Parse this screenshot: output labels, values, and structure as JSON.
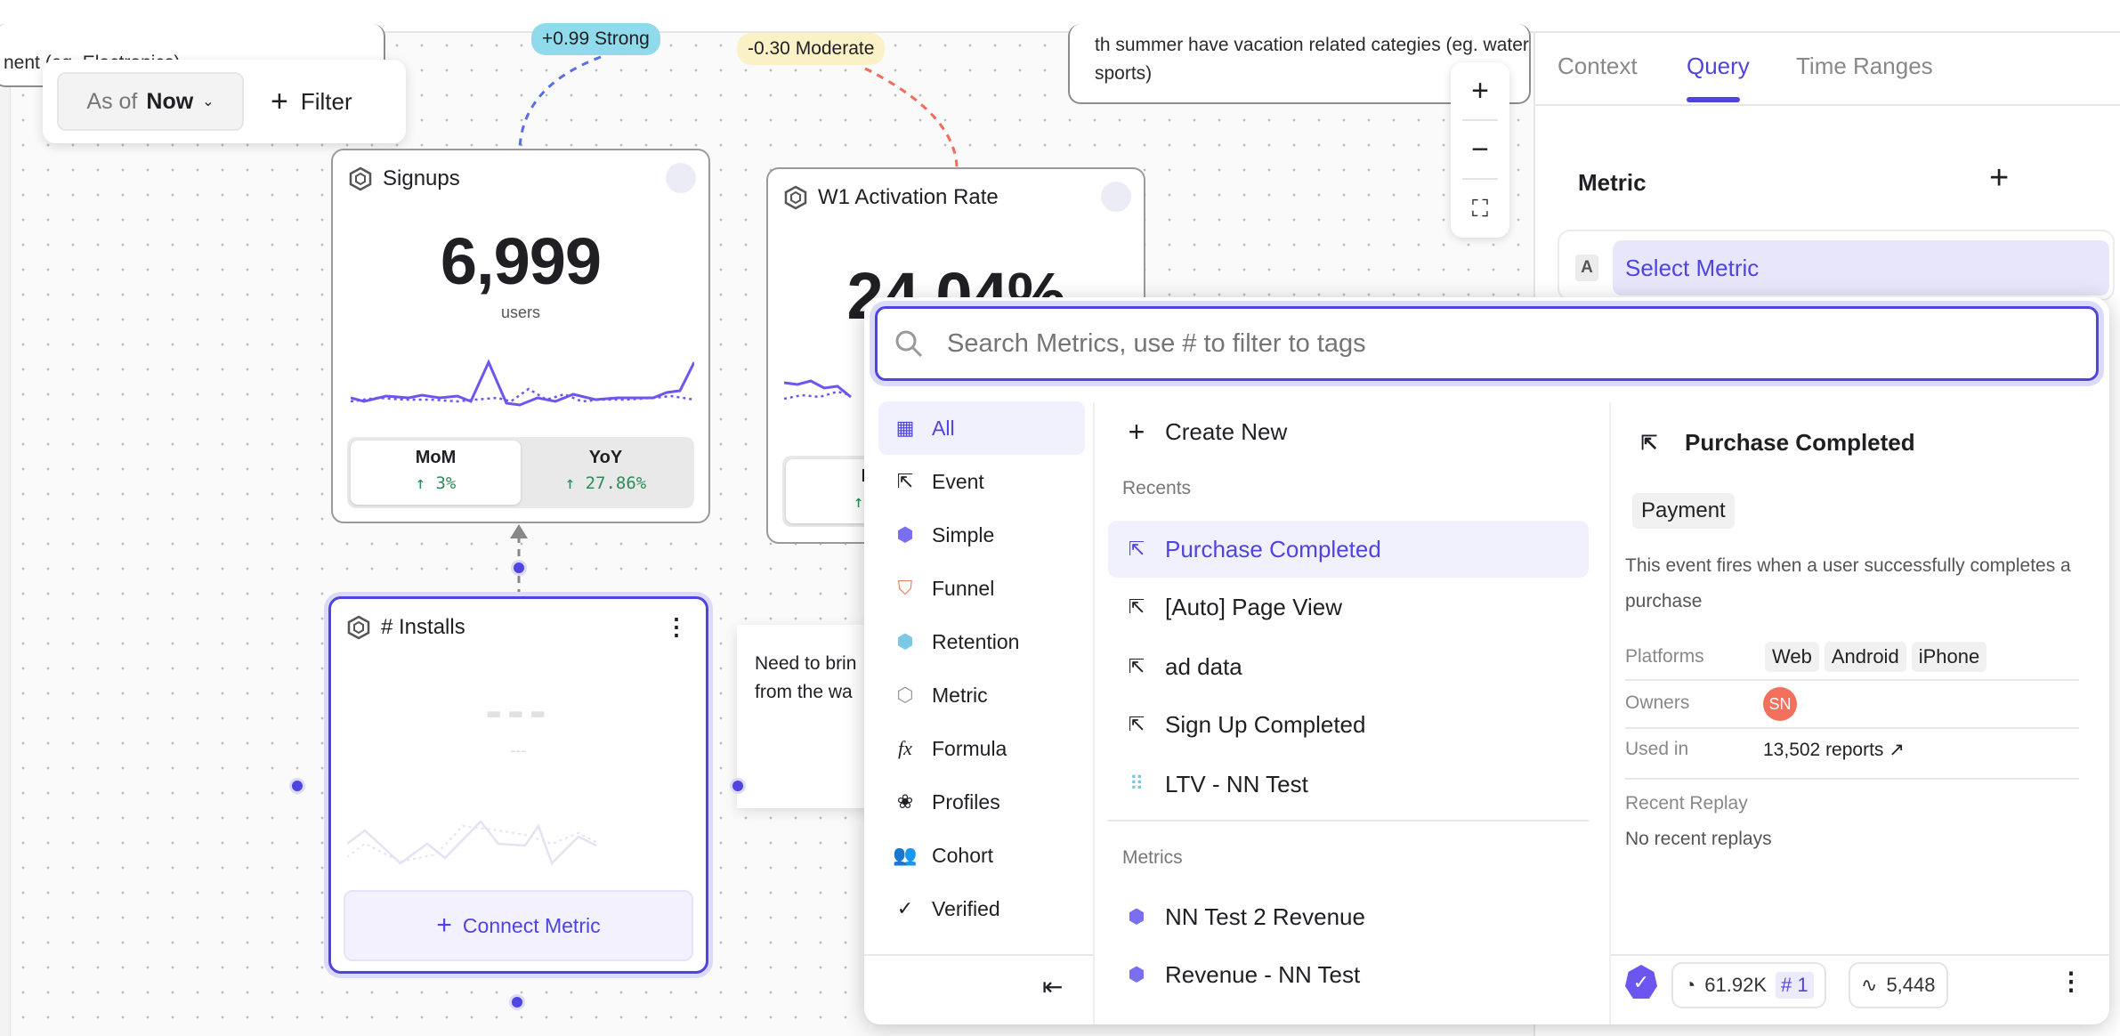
{
  "canvas": {
    "notes": {
      "top_left_text": "nent  (eg. Electronics)",
      "top_right_text": "th summer have vacation related categies (eg. water sports)",
      "right_text": "Need to brin from the wa"
    },
    "filter_bar": {
      "as_of_label": "As of",
      "as_of_value": "Now",
      "filter_label": "Filter"
    },
    "correlations": [
      {
        "label": "+0.99 Strong",
        "color": "#8fdbeb"
      },
      {
        "label": "-0.30 Moderate",
        "color": "#fbf1c7"
      }
    ],
    "cards": {
      "signups": {
        "title": "Signups",
        "value": "6,999",
        "unit": "users",
        "mom_label": "MoM",
        "mom_value": "↑ 3%",
        "yoy_label": "YoY",
        "yoy_value": "↑ 27.86%"
      },
      "activation": {
        "title": "W1 Activation Rate",
        "value": "24.04%",
        "mom_label": "M",
        "mom_value": "↑ 3"
      },
      "installs": {
        "title": "# Installs",
        "placeholder_value": "---",
        "placeholder_unit": "---",
        "connect_label": "Connect Metric"
      }
    },
    "zoom_controls": {
      "zoom_in": "+",
      "zoom_out": "−"
    }
  },
  "panel": {
    "tabs": [
      {
        "label": "Context"
      },
      {
        "label": "Query",
        "active": true
      },
      {
        "label": "Time Ranges"
      }
    ],
    "metric_heading": "Metric",
    "metric_letter": "A",
    "select_metric": "Select Metric"
  },
  "popup": {
    "search_placeholder": "Search Metrics, use # to filter to tags",
    "categories": [
      {
        "label": "All",
        "icon": "grid-icon",
        "active": true
      },
      {
        "label": "Event",
        "icon": "event-click-icon"
      },
      {
        "label": "Simple",
        "icon": "simple-metric-icon"
      },
      {
        "label": "Funnel",
        "icon": "funnel-icon"
      },
      {
        "label": "Retention",
        "icon": "retention-icon"
      },
      {
        "label": "Metric",
        "icon": "metric-hex-icon"
      },
      {
        "label": "Formula",
        "icon": "formula-fx-icon"
      },
      {
        "label": "Profiles",
        "icon": "profiles-icon"
      },
      {
        "label": "Cohort",
        "icon": "cohort-icon"
      },
      {
        "label": "Verified",
        "icon": "verified-icon"
      }
    ],
    "create_new": "Create New",
    "recents_heading": "Recents",
    "recents": [
      {
        "label": "Purchase Completed",
        "icon": "event-click-icon",
        "active": true
      },
      {
        "label": "[Auto] Page View",
        "icon": "event-click-icon"
      },
      {
        "label": "ad data",
        "icon": "event-click-icon"
      },
      {
        "label": "Sign Up Completed",
        "icon": "event-click-icon"
      },
      {
        "label": "LTV - NN Test",
        "icon": "grid-dots-icon"
      }
    ],
    "metrics_heading": "Metrics",
    "metrics": [
      {
        "label": "NN Test 2 Revenue",
        "icon": "simple-metric-icon"
      },
      {
        "label": "Revenue - NN Test",
        "icon": "simple-metric-icon"
      }
    ],
    "detail": {
      "title": "Purchase Completed",
      "tag": "Payment",
      "description": "This event fires when a user successfully completes a purchase",
      "platforms_label": "Platforms",
      "platforms": [
        "Web",
        "Android",
        "iPhone"
      ],
      "owners_label": "Owners",
      "owner_initials": "SN",
      "owner_color": "#f2705c",
      "used_in_label": "Used in",
      "used_in_value": "13,502 reports ↗",
      "recent_replay_label": "Recent Replay",
      "recent_replay_value": "No recent replays",
      "footer": {
        "queries": "61.92K",
        "rank": "# 1",
        "volume": "5,448"
      }
    }
  },
  "colors": {
    "accent": "#4f44e0",
    "positive": "#2e8b57"
  }
}
